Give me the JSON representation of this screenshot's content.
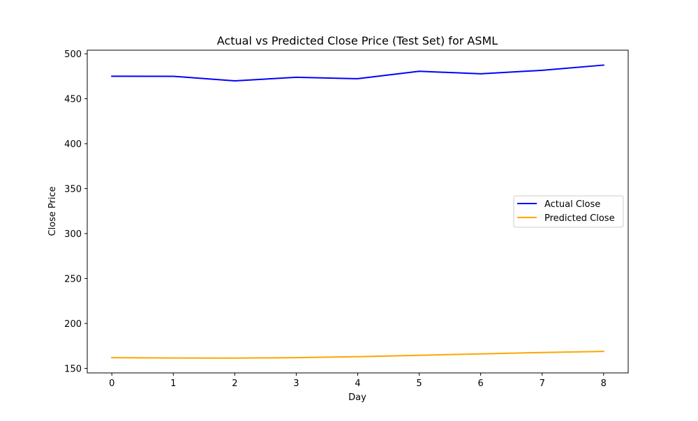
{
  "chart_data": {
    "type": "line",
    "title": "Actual vs Predicted Close Price (Test Set) for ASML",
    "xlabel": "Day",
    "ylabel": "Close Price",
    "x": [
      0,
      1,
      2,
      3,
      4,
      5,
      6,
      7,
      8
    ],
    "xticks": [
      "0",
      "1",
      "2",
      "3",
      "4",
      "5",
      "6",
      "7",
      "8"
    ],
    "yticks": [
      "150",
      "200",
      "250",
      "300",
      "350",
      "400",
      "450",
      "500"
    ],
    "xlim": [
      -0.4,
      8.4
    ],
    "ylim": [
      145,
      504
    ],
    "grid": false,
    "legend_position": "center-right",
    "series": [
      {
        "name": "Actual Close",
        "color": "#0000ff",
        "values": [
          475.0,
          474.9,
          469.9,
          473.8,
          472.3,
          480.6,
          477.7,
          481.6,
          487.4
        ]
      },
      {
        "name": "Predicted Close",
        "color": "#ffa500",
        "values": [
          162.0,
          161.6,
          161.4,
          162.0,
          163.1,
          164.6,
          166.2,
          167.7,
          168.9
        ]
      }
    ]
  }
}
